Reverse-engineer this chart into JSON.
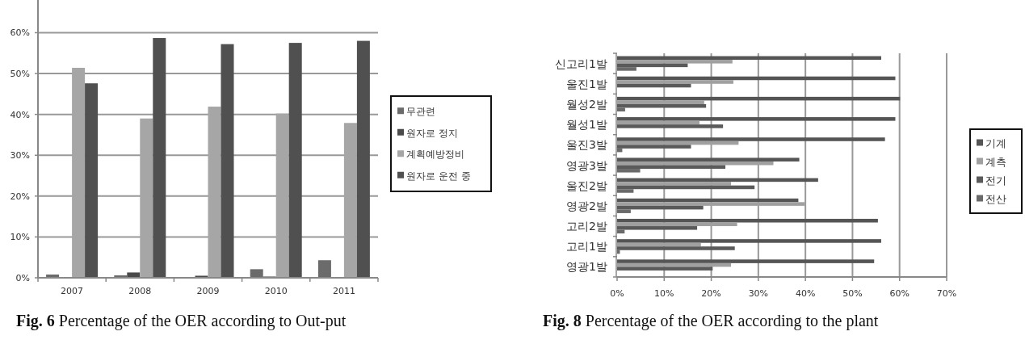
{
  "chart_data": [
    {
      "type": "bar",
      "categories": [
        "2007",
        "2008",
        "2009",
        "2010",
        "2011"
      ],
      "series": [
        {
          "name": "무관련",
          "color": "#6b6b6b",
          "values": [
            0.8,
            0.6,
            0,
            2.1,
            4.3
          ]
        },
        {
          "name": "원자로 정지",
          "color": "#4a4a4a",
          "values": [
            0,
            1.3,
            0.5,
            0.3,
            0
          ]
        },
        {
          "name": "계획예방정비",
          "color": "#a6a6a6",
          "values": [
            51.4,
            39.0,
            41.9,
            40.2,
            37.9
          ]
        },
        {
          "name": "원자로 운전 중",
          "color": "#505050",
          "values": [
            47.6,
            58.7,
            57.2,
            57.5,
            58.0
          ]
        }
      ],
      "ylim": [
        0,
        68
      ],
      "yticks": [
        {
          "value": 0,
          "label": "0%"
        },
        {
          "value": 10,
          "label": "10%"
        },
        {
          "value": 20,
          "label": "20%"
        },
        {
          "value": 30,
          "label": "30%"
        },
        {
          "value": 40,
          "label": "40%"
        },
        {
          "value": 50,
          "label": "50%"
        },
        {
          "value": 60,
          "label": "60%"
        }
      ],
      "grid": "y",
      "legend": "right",
      "annotations": [
        "**Fig. 6** Percentage of the OER according to Out-put"
      ]
    },
    {
      "type": "bar",
      "orientation": "horizontal",
      "categories": [
        "신고리1발",
        "울진1발",
        "월성2발",
        "월성1발",
        "울진3발",
        "영광3발",
        "울진2발",
        "영광2발",
        "고리2발",
        "고리1발",
        "영광1발"
      ],
      "series": [
        {
          "name": "기계",
          "color": "#555555",
          "values": [
            56.1,
            59.1,
            60.1,
            59.1,
            56.9,
            38.7,
            42.7,
            38.5,
            55.4,
            56.1,
            54.6
          ]
        },
        {
          "name": "계측",
          "color": "#a0a0a0",
          "values": [
            24.5,
            24.7,
            18.5,
            17.5,
            25.8,
            33.2,
            24.2,
            39.8,
            25.5,
            17.8,
            24.2
          ]
        },
        {
          "name": "전기",
          "color": "#5a5a5a",
          "values": [
            15.0,
            15.7,
            18.9,
            22.5,
            15.7,
            23.0,
            29.2,
            18.3,
            17.0,
            25.0,
            20.3
          ]
        },
        {
          "name": "전산",
          "color": "#6a6a6a",
          "values": [
            4.1,
            0,
            1.7,
            0,
            1.1,
            4.9,
            3.5,
            2.9,
            1.6,
            0.6,
            0
          ]
        }
      ],
      "xlim": [
        0,
        70
      ],
      "xticks": [
        {
          "value": 0,
          "label": "0%"
        },
        {
          "value": 10,
          "label": "10%"
        },
        {
          "value": 20,
          "label": "20%"
        },
        {
          "value": 30,
          "label": "30%"
        },
        {
          "value": 40,
          "label": "40%"
        },
        {
          "value": 50,
          "label": "50%"
        },
        {
          "value": 60,
          "label": "60%"
        },
        {
          "value": 70,
          "label": "70%"
        }
      ],
      "grid": "x",
      "legend": "right",
      "annotations": [
        "**Fig. 8** Percentage of the OER according to the plant"
      ]
    }
  ]
}
